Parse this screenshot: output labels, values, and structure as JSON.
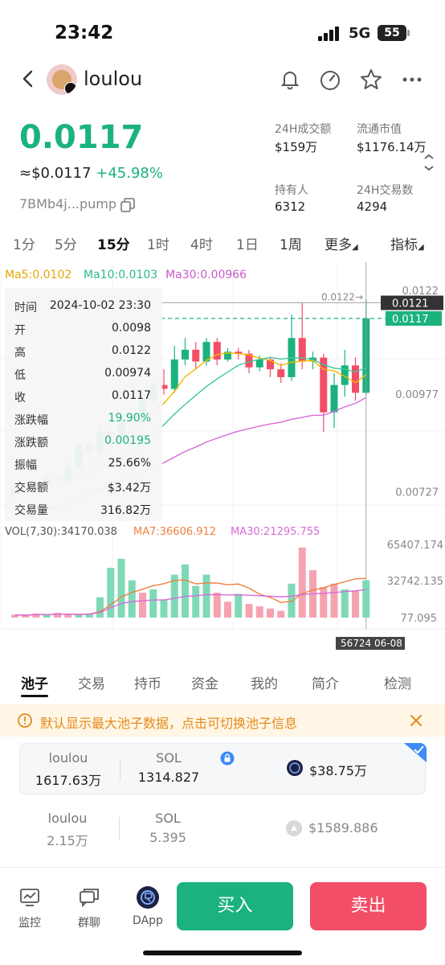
{
  "status_bar": {
    "time": "23:42",
    "network": "5G",
    "battery": "55"
  },
  "header": {
    "token_name": "loulou"
  },
  "price": {
    "main": "0.0117",
    "usd": "≈$0.0117",
    "change": "+45.98%",
    "address": "7BMb4j...pump"
  },
  "stats": [
    {
      "label": "24H成交额",
      "value": "$159万"
    },
    {
      "label": "流通市值",
      "value": "$1176.14万"
    },
    {
      "label": "持有人",
      "value": "6312"
    },
    {
      "label": "24H交易数",
      "value": "4294"
    }
  ],
  "timeframes": [
    "1分",
    "5分",
    "15分",
    "1时",
    "4时",
    "1日",
    "1周",
    "更多",
    "指标"
  ],
  "timeframe_active": "15分",
  "ma": {
    "ma5": "Ma5:0.0102",
    "ma10": "Ma10:0.0103",
    "ma30": "Ma30:0.00966"
  },
  "tooltip": {
    "time_label": "时间",
    "time": "2024-10-02 23:30",
    "rows": [
      {
        "label": "开",
        "value": "0.0098"
      },
      {
        "label": "高",
        "value": "0.0122"
      },
      {
        "label": "低",
        "value": "0.00974"
      },
      {
        "label": "收",
        "value": "0.0117"
      },
      {
        "label": "涨跌幅",
        "value": "19.90%"
      },
      {
        "label": "涨跌额",
        "value": "0.00195"
      },
      {
        "label": "振幅",
        "value": "25.66%"
      },
      {
        "label": "交易额",
        "value": "$3.42万"
      },
      {
        "label": "交易量",
        "value": "316.82万"
      }
    ]
  },
  "price_axis": {
    "high_marker": "0.0122→",
    "cursor_price": "0.0121",
    "current_price": "0.0117",
    "tick_top": "0.0122",
    "tick_mid": "0.00977",
    "tick_low": "0.00727"
  },
  "volume": {
    "vol": "VOL(7,30):34170.038",
    "ma7": "MA7:36606.912",
    "ma30": "MA30:21295.755",
    "tick_top": "65407.174",
    "tick_mid": "32742.135",
    "tick_low": "77.095",
    "cursor_label": "56724 06-08"
  },
  "colors": {
    "up": "#1bb27e",
    "down": "#f24e67",
    "ma5": "#f5b800",
    "ma10": "#3cc79a",
    "ma30": "#d86ad8"
  },
  "chart_data": {
    "type": "candlestick",
    "candles": [
      {
        "o": 0.0072,
        "c": 0.00735,
        "h": 0.00745,
        "l": 0.00712
      },
      {
        "o": 0.00735,
        "c": 0.00728,
        "h": 0.00745,
        "l": 0.0072
      },
      {
        "o": 0.00728,
        "c": 0.00742,
        "h": 0.0075,
        "l": 0.00722
      },
      {
        "o": 0.00742,
        "c": 0.0076,
        "h": 0.00772,
        "l": 0.00738
      },
      {
        "o": 0.0076,
        "c": 0.00755,
        "h": 0.00768,
        "l": 0.00748
      },
      {
        "o": 0.00755,
        "c": 0.0079,
        "h": 0.008,
        "l": 0.0075
      },
      {
        "o": 0.0079,
        "c": 0.00845,
        "h": 0.00858,
        "l": 0.00785
      },
      {
        "o": 0.00845,
        "c": 0.0083,
        "h": 0.0086,
        "l": 0.00815
      },
      {
        "o": 0.0083,
        "c": 0.0088,
        "h": 0.009,
        "l": 0.00822
      },
      {
        "o": 0.0088,
        "c": 0.00872,
        "h": 0.00895,
        "l": 0.0086
      },
      {
        "o": 0.00872,
        "c": 0.0091,
        "h": 0.0092,
        "l": 0.00865
      },
      {
        "o": 0.0091,
        "c": 0.00905,
        "h": 0.00925,
        "l": 0.0089
      },
      {
        "o": 0.00905,
        "c": 0.0096,
        "h": 0.00975,
        "l": 0.009
      },
      {
        "o": 0.0096,
        "c": 0.01,
        "h": 0.0101,
        "l": 0.0095
      },
      {
        "o": 0.01,
        "c": 0.0099,
        "h": 0.0104,
        "l": 0.00975
      },
      {
        "o": 0.0099,
        "c": 0.01065,
        "h": 0.011,
        "l": 0.0098
      },
      {
        "o": 0.01065,
        "c": 0.0109,
        "h": 0.0112,
        "l": 0.0105
      },
      {
        "o": 0.0109,
        "c": 0.0106,
        "h": 0.0111,
        "l": 0.0104
      },
      {
        "o": 0.0106,
        "c": 0.0111,
        "h": 0.0112,
        "l": 0.0105
      },
      {
        "o": 0.0111,
        "c": 0.01065,
        "h": 0.0112,
        "l": 0.0105
      },
      {
        "o": 0.01065,
        "c": 0.01085,
        "h": 0.01095,
        "l": 0.0106
      },
      {
        "o": 0.01085,
        "c": 0.0108,
        "h": 0.01095,
        "l": 0.01065
      },
      {
        "o": 0.0108,
        "c": 0.01045,
        "h": 0.0109,
        "l": 0.0103
      },
      {
        "o": 0.01045,
        "c": 0.01065,
        "h": 0.01075,
        "l": 0.01035
      },
      {
        "o": 0.01065,
        "c": 0.0104,
        "h": 0.0107,
        "l": 0.0102
      },
      {
        "o": 0.0104,
        "c": 0.0102,
        "h": 0.01055,
        "l": 0.01005
      },
      {
        "o": 0.0102,
        "c": 0.0112,
        "h": 0.0118,
        "l": 0.0101
      },
      {
        "o": 0.0112,
        "c": 0.0106,
        "h": 0.0121,
        "l": 0.0104
      },
      {
        "o": 0.0106,
        "c": 0.0107,
        "h": 0.01085,
        "l": 0.0104
      },
      {
        "o": 0.0107,
        "c": 0.0093,
        "h": 0.0108,
        "l": 0.0088
      },
      {
        "o": 0.0093,
        "c": 0.01,
        "h": 0.0103,
        "l": 0.0089
      },
      {
        "o": 0.01,
        "c": 0.0105,
        "h": 0.0109,
        "l": 0.0097
      },
      {
        "o": 0.0105,
        "c": 0.0098,
        "h": 0.0107,
        "l": 0.0096
      },
      {
        "o": 0.0098,
        "c": 0.0117,
        "h": 0.0122,
        "l": 0.00974
      }
    ],
    "volumes": [
      {
        "v": 2500,
        "up": false
      },
      {
        "v": 1800,
        "up": false
      },
      {
        "v": 3500,
        "up": false
      },
      {
        "v": 2800,
        "up": true
      },
      {
        "v": 4200,
        "up": false
      },
      {
        "v": 3000,
        "up": false
      },
      {
        "v": 2200,
        "up": true
      },
      {
        "v": 3800,
        "up": true
      },
      {
        "v": 18000,
        "up": true
      },
      {
        "v": 44000,
        "up": true
      },
      {
        "v": 52000,
        "up": true
      },
      {
        "v": 33000,
        "up": true
      },
      {
        "v": 22000,
        "up": false
      },
      {
        "v": 25000,
        "up": true
      },
      {
        "v": 16000,
        "up": true
      },
      {
        "v": 38000,
        "up": true
      },
      {
        "v": 47000,
        "up": true
      },
      {
        "v": 28000,
        "up": true
      },
      {
        "v": 38000,
        "up": true
      },
      {
        "v": 22000,
        "up": false
      },
      {
        "v": 14000,
        "up": false
      },
      {
        "v": 21000,
        "up": true
      },
      {
        "v": 12000,
        "up": false
      },
      {
        "v": 10000,
        "up": false
      },
      {
        "v": 8000,
        "up": false
      },
      {
        "v": 6000,
        "up": false
      },
      {
        "v": 30000,
        "up": true
      },
      {
        "v": 62000,
        "up": false
      },
      {
        "v": 42000,
        "up": false
      },
      {
        "v": 27000,
        "up": false
      },
      {
        "v": 30000,
        "up": false
      },
      {
        "v": 25000,
        "up": true
      },
      {
        "v": 24000,
        "up": false
      },
      {
        "v": 33000,
        "up": true
      }
    ],
    "ylim": [
      0.0066,
      0.0124
    ],
    "vol_ylim": [
      0,
      65407
    ]
  },
  "tabs": [
    "池子",
    "交易",
    "持币",
    "资金",
    "我的",
    "简介",
    "检测"
  ],
  "tab_active": "池子",
  "notice": "默认显示最大池子数据，点击可切换池子信息",
  "pools": [
    {
      "token": "loulou",
      "token_amt": "1617.63万",
      "quote": "SOL",
      "quote_amt": "1314.827",
      "liquidity": "$38.75万"
    },
    {
      "token": "loulou",
      "token_amt": "2.15万",
      "quote": "SOL",
      "quote_amt": "5.395",
      "liquidity": "$1589.886"
    }
  ],
  "bottom_nav": [
    {
      "label": "监控",
      "icon": "monitor-icon"
    },
    {
      "label": "群聊",
      "icon": "chat-icon"
    },
    {
      "label": "DApp",
      "icon": "dapp-icon"
    }
  ],
  "buttons": {
    "buy": "买入",
    "sell": "卖出"
  }
}
